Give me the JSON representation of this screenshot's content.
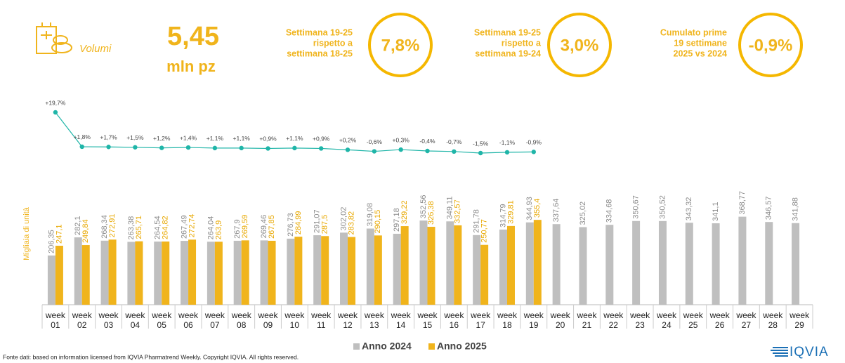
{
  "header": {
    "icon_label": "Volumi",
    "total_value": "5,45",
    "total_unit": "mln pz",
    "kpis": [
      {
        "label": [
          "Settimana 19-25",
          "rispetto a",
          "settimana 18-25"
        ],
        "value": "7,8%"
      },
      {
        "label": [
          "Settimana 19-25",
          "rispetto a",
          "settimana 19-24"
        ],
        "value": "3,0%"
      },
      {
        "label": [
          "Cumulato prime",
          "19 settimane",
          "2025 vs 2024"
        ],
        "value": "-0,9%"
      }
    ]
  },
  "chart_data": {
    "type": "bar",
    "y_label": "Migliaia di unità",
    "categories": [
      "week 01",
      "week 02",
      "week 03",
      "week 04",
      "week 05",
      "week 06",
      "week 07",
      "week 08",
      "week 09",
      "week 10",
      "week 11",
      "week 12",
      "week 13",
      "week 14",
      "week 15",
      "week 16",
      "week 17",
      "week 18",
      "week 19",
      "week 20",
      "week 21",
      "week 22",
      "week 23",
      "week 24",
      "week 25",
      "week 26",
      "week 27",
      "week 28",
      "week 29"
    ],
    "ylim": [
      0,
      400
    ],
    "series": [
      {
        "name": "Anno 2024",
        "color": "#bfbfbf",
        "values": [
          206.35,
          282.1,
          268.34,
          263.38,
          264.54,
          267.49,
          264.04,
          267.9,
          269.46,
          276.73,
          291.07,
          302.02,
          319.08,
          297.18,
          352.56,
          349.11,
          291.78,
          314.79,
          344.93,
          337.64,
          325.02,
          334.68,
          350.67,
          350.52,
          343.32,
          341.1,
          368.77,
          346.57,
          341.88
        ],
        "value_labels": [
          "206,35",
          "282,1",
          "268,34",
          "263,38",
          "264,54",
          "267,49",
          "264,04",
          "267,9",
          "269,46",
          "276,73",
          "291,07",
          "302,02",
          "319,08",
          "297,18",
          "352,56",
          "349,11",
          "291,78",
          "314,79",
          "344,93",
          "337,64",
          "325,02",
          "334,68",
          "350,67",
          "350,52",
          "343,32",
          "341,1",
          "368,77",
          "346,57",
          "341,88"
        ]
      },
      {
        "name": "Anno 2025",
        "color": "#f0b41c",
        "values": [
          247.1,
          249.84,
          272.91,
          265.71,
          264.82,
          272.74,
          263.9,
          269.59,
          267.85,
          284.99,
          287.5,
          283.82,
          290.15,
          329.22,
          326.38,
          332.57,
          250.77,
          329.81,
          355.4,
          null,
          null,
          null,
          null,
          null,
          null,
          null,
          null,
          null,
          null
        ],
        "value_labels": [
          "247,1",
          "249,84",
          "272,91",
          "265,71",
          "264,82",
          "272,74",
          "263,9",
          "269,59",
          "267,85",
          "284,99",
          "287,5",
          "283,82",
          "290,15",
          "329,22",
          "326,38",
          "332,57",
          "250,77",
          "329,81",
          "355,4",
          null,
          null,
          null,
          null,
          null,
          null,
          null,
          null,
          null,
          null
        ]
      }
    ],
    "growth": {
      "color": "#1fb5a8",
      "values": [
        19.7,
        1.8,
        1.7,
        1.5,
        1.2,
        1.4,
        1.1,
        1.1,
        0.9,
        1.1,
        0.9,
        0.2,
        -0.6,
        0.3,
        -0.4,
        -0.7,
        -1.5,
        -1.1,
        -0.9
      ],
      "value_labels": [
        "+19,7%",
        "+1,8%",
        "+1,7%",
        "+1,5%",
        "+1,2%",
        "+1,4%",
        "+1,1%",
        "+1,1%",
        "+0,9%",
        "+1,1%",
        "+0,9%",
        "+0,2%",
        "-0,6%",
        "+0,3%",
        "-0,4%",
        "-0,7%",
        "-1,5%",
        "-1,1%",
        "-0,9%"
      ]
    }
  },
  "footer": {
    "source": "Fonte dati: based on information licensed from IQVIA Pharmatrend Weekly. Copyright IQVIA. All rights reserved.",
    "logo": "IQVIA"
  }
}
